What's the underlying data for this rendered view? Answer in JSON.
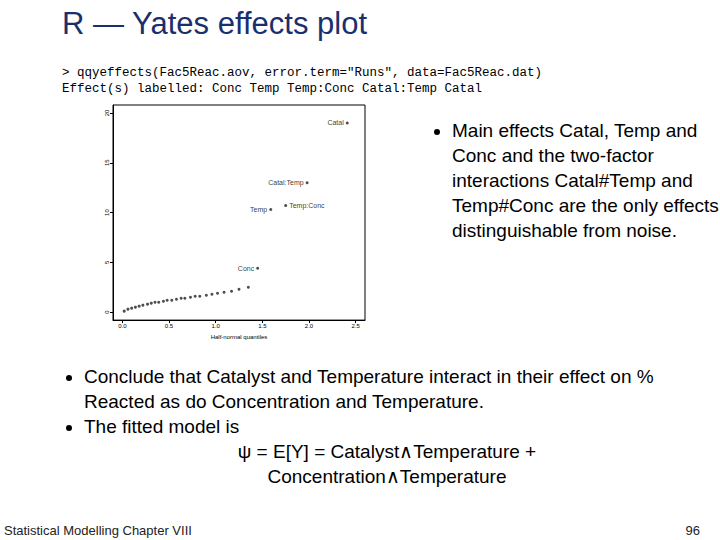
{
  "slide": {
    "title": "R — Yates effects plot",
    "code": [
      "> qqyeffects(Fac5Reac.aov, error.term=\"Runs\", data=Fac5Reac.dat)",
      "Effect(s) labelled: Conc Temp Temp:Conc Catal:Temp Catal"
    ],
    "side_bullets": [
      "Main effects Catal, Temp and Conc and the two-factor interactions Catal#Temp and Temp#Conc are the only effects distinguishable from noise."
    ],
    "bottom_bullets": [
      "Conclude that Catalyst and Temperature interact in their effect on % Reacted as do Concentration and Temperature.",
      "The fitted model is"
    ],
    "formula": [
      "ψ = E[Y] = Catalyst∧Temperature +",
      "Concentration∧Temperature"
    ],
    "footer": "Statistical Modelling   Chapter VIII",
    "page": "96"
  },
  "chart_data": {
    "type": "scatter",
    "x_label": "Half-normal quantiles",
    "x": [
      0.02,
      0.06,
      0.1,
      0.14,
      0.18,
      0.22,
      0.27,
      0.31,
      0.35,
      0.39,
      0.44,
      0.48,
      0.53,
      0.58,
      0.63,
      0.67,
      0.73,
      0.78,
      0.83,
      0.9,
      0.96,
      1.02,
      1.09,
      1.17,
      1.25,
      1.35,
      1.45,
      1.59,
      1.75,
      1.98,
      2.41
    ],
    "values": [
      0.1,
      0.3,
      0.4,
      0.5,
      0.6,
      0.7,
      0.8,
      0.9,
      1.0,
      1.0,
      1.1,
      1.2,
      1.2,
      1.3,
      1.4,
      1.4,
      1.5,
      1.6,
      1.6,
      1.7,
      1.8,
      1.9,
      2.0,
      2.1,
      2.3,
      2.5,
      4.4,
      10.3,
      10.7,
      13.0,
      19.0
    ],
    "point_labels": [
      null,
      null,
      null,
      null,
      null,
      null,
      null,
      null,
      null,
      null,
      null,
      null,
      null,
      null,
      null,
      null,
      null,
      null,
      null,
      null,
      null,
      null,
      null,
      null,
      null,
      null,
      "Conc",
      "Temp",
      "Temp:Conc",
      "Catal:Temp",
      "Catal"
    ],
    "color": "#222222",
    "marker": "circle",
    "xlim": [
      -0.1,
      2.6
    ],
    "ylim": [
      -0.8,
      20.8
    ],
    "xticks": [
      {
        "value": 0,
        "label": "0.0"
      },
      {
        "value": 0.5,
        "label": "0.5"
      },
      {
        "value": 1,
        "label": "1.0"
      },
      {
        "value": 1.5,
        "label": "1.5"
      },
      {
        "value": 2,
        "label": "2.0"
      },
      {
        "value": 2.5,
        "label": "2.5"
      }
    ],
    "yticks": [
      0,
      5,
      10,
      15,
      20
    ],
    "grid": false
  }
}
